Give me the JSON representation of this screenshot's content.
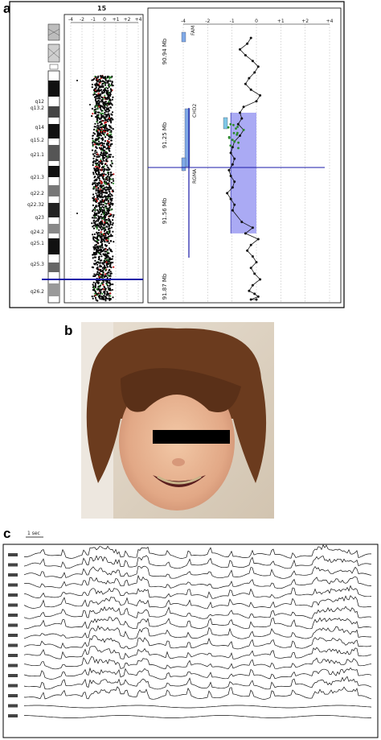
{
  "panels": {
    "a": {
      "letter": "a",
      "chromosome": "15",
      "bands": [
        "q12",
        "q13.2",
        "q14",
        "q15.2",
        "q21.1",
        "q21.3",
        "q22.2",
        "q22.32",
        "q23",
        "q24.2",
        "q25.1",
        "q25.3",
        "q26.2"
      ],
      "left_ticks": [
        "-4",
        "-2",
        "-1",
        "0",
        "+1",
        "+2",
        "+4"
      ],
      "right_ticks": [
        "-4",
        "-2",
        "-1",
        "0",
        "+1",
        "+2",
        "+4"
      ],
      "mb_labels": [
        "90.94 Mb",
        "91.25 Mb",
        "91.56 Mb",
        "91.87 Mb"
      ],
      "gene_labels": [
        "FAM",
        "CHD2",
        "RGMA"
      ],
      "colors": {
        "deletion_fill": "#9b9bf2",
        "marker_line": "#1a1aa8",
        "green": "#2c8a2c",
        "red": "#c81414"
      }
    },
    "b": {
      "letter": "b"
    },
    "c": {
      "letter": "c",
      "scale_label": "1 sec"
    }
  },
  "chart_data": {
    "type": "scatter",
    "title": "",
    "xlabel": "",
    "ylabel": "",
    "xlim": [
      -4,
      4
    ],
    "ylim_mb": [
      90.94,
      91.87
    ],
    "series": [
      {
        "x": [
          -0.3,
          -0.5,
          -0.9,
          -0.6,
          -0.2,
          0.1,
          -0.1,
          -0.4,
          -0.6,
          -0.3,
          0.2,
          0.0,
          -0.7,
          -0.9,
          -0.8,
          -1.0,
          -0.7,
          -0.9,
          -1.2,
          -1.3,
          -1.4,
          -1.2,
          -1.3,
          -1.5,
          -1.4,
          -1.2,
          -1.3,
          -1.6,
          -1.4,
          -1.2,
          -1.3,
          -0.8,
          -0.2,
          -0.6,
          0.1,
          -0.3,
          -0.5,
          -0.2,
          0.0,
          -0.3,
          -0.1,
          0.2,
          -0.2,
          -0.4,
          -0.1,
          0.1,
          -0.3,
          0.0
        ],
        "mb": [
          90.96,
          90.98,
          91.0,
          91.02,
          91.04,
          91.06,
          91.08,
          91.1,
          91.12,
          91.14,
          91.16,
          91.18,
          91.2,
          91.22,
          91.24,
          91.26,
          91.28,
          91.3,
          91.32,
          91.34,
          91.36,
          91.38,
          91.4,
          91.42,
          91.44,
          91.46,
          91.48,
          91.5,
          91.52,
          91.54,
          91.56,
          91.6,
          91.62,
          91.64,
          91.66,
          91.68,
          91.7,
          91.72,
          91.74,
          91.76,
          91.78,
          91.8,
          91.82,
          91.84,
          91.85,
          91.86,
          91.87,
          91.87
        ]
      }
    ],
    "deletion_mb": [
      91.22,
      91.64
    ]
  }
}
